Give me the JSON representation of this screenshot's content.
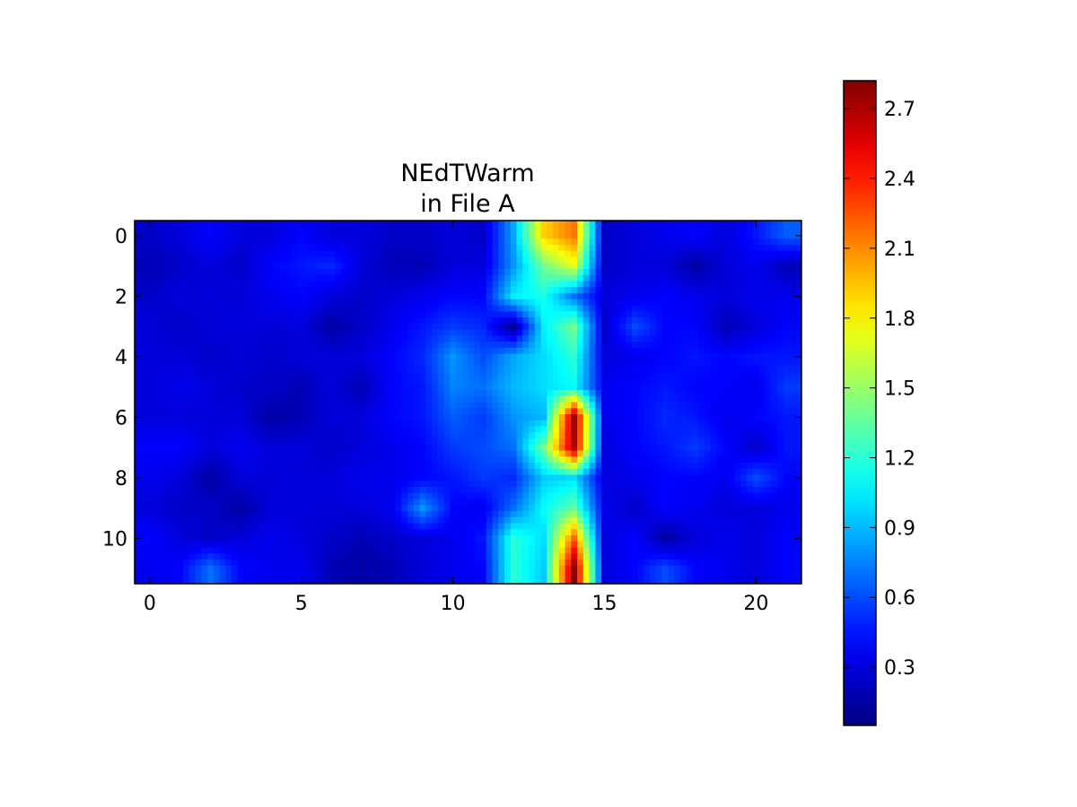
{
  "chart_data": {
    "type": "heatmap",
    "title": [
      "NEdTWarm",
      "in File A"
    ],
    "xlabel": "",
    "ylabel": "",
    "xlim": [
      -0.5,
      21.5
    ],
    "ylim": [
      11.5,
      -0.5
    ],
    "x_ticks": [
      0,
      5,
      10,
      15,
      20
    ],
    "x_tick_labels": [
      "0",
      "5",
      "10",
      "15",
      "20"
    ],
    "y_ticks": [
      0,
      2,
      4,
      6,
      8,
      10
    ],
    "y_tick_labels": [
      "0",
      "2",
      "4",
      "6",
      "8",
      "10"
    ],
    "rows": 12,
    "cols": 22,
    "interpolation": "bilinear",
    "colormap": "jet",
    "colorbar": {
      "vmin": 0.05,
      "vmax": 2.82,
      "ticks": [
        0.3,
        0.6,
        0.9,
        1.2,
        1.5,
        1.8,
        2.1,
        2.4,
        2.7
      ],
      "tick_labels": [
        "0.3",
        "0.6",
        "0.9",
        "1.2",
        "1.5",
        "1.8",
        "2.1",
        "2.4",
        "2.7"
      ],
      "placement": "right"
    },
    "grid": false,
    "values": [
      [
        0.25,
        0.3,
        0.4,
        0.3,
        0.3,
        0.4,
        0.3,
        0.3,
        0.25,
        0.25,
        0.3,
        0.25,
        0.85,
        1.9,
        2.15,
        0.25,
        0.3,
        0.35,
        0.4,
        0.3,
        0.45,
        0.65
      ],
      [
        0.2,
        0.25,
        0.3,
        0.25,
        0.4,
        0.45,
        0.5,
        0.3,
        0.2,
        0.2,
        0.3,
        0.3,
        0.8,
        1.4,
        1.7,
        0.25,
        0.3,
        0.3,
        0.15,
        0.3,
        0.35,
        0.2
      ],
      [
        0.25,
        0.3,
        0.3,
        0.3,
        0.35,
        0.4,
        0.3,
        0.25,
        0.3,
        0.35,
        0.4,
        0.4,
        1.05,
        1.15,
        0.7,
        0.3,
        0.35,
        0.4,
        0.35,
        0.3,
        0.35,
        0.35
      ],
      [
        0.3,
        0.25,
        0.3,
        0.3,
        0.3,
        0.3,
        0.15,
        0.25,
        0.35,
        0.45,
        0.55,
        0.5,
        0.1,
        1.05,
        1.4,
        0.25,
        0.6,
        0.4,
        0.4,
        0.2,
        0.3,
        0.4
      ],
      [
        0.3,
        0.3,
        0.25,
        0.3,
        0.25,
        0.3,
        0.3,
        0.3,
        0.4,
        0.5,
        0.8,
        0.6,
        0.85,
        1.0,
        1.2,
        0.3,
        0.35,
        0.4,
        0.45,
        0.4,
        0.45,
        0.45
      ],
      [
        0.3,
        0.35,
        0.3,
        0.25,
        0.25,
        0.2,
        0.3,
        0.2,
        0.4,
        0.45,
        0.75,
        0.7,
        0.9,
        1.0,
        1.1,
        0.35,
        0.4,
        0.45,
        0.4,
        0.4,
        0.35,
        0.55
      ],
      [
        0.3,
        0.3,
        0.3,
        0.3,
        0.15,
        0.2,
        0.3,
        0.3,
        0.4,
        0.45,
        0.65,
        0.55,
        0.8,
        0.9,
        2.75,
        0.35,
        0.4,
        0.5,
        0.45,
        0.35,
        0.4,
        0.45
      ],
      [
        0.4,
        0.4,
        0.3,
        0.35,
        0.3,
        0.3,
        0.25,
        0.3,
        0.35,
        0.4,
        0.55,
        0.6,
        0.7,
        1.4,
        2.7,
        0.3,
        0.4,
        0.45,
        0.55,
        0.4,
        0.25,
        0.45
      ],
      [
        0.35,
        0.3,
        0.15,
        0.3,
        0.3,
        0.3,
        0.3,
        0.35,
        0.35,
        0.4,
        0.45,
        0.55,
        0.5,
        0.95,
        1.0,
        0.3,
        0.35,
        0.4,
        0.4,
        0.35,
        0.6,
        0.4
      ],
      [
        0.3,
        0.25,
        0.25,
        0.15,
        0.3,
        0.3,
        0.3,
        0.3,
        0.35,
        0.8,
        0.4,
        0.35,
        0.7,
        1.1,
        1.35,
        0.35,
        0.25,
        0.4,
        0.35,
        0.3,
        0.3,
        0.35
      ],
      [
        0.4,
        0.3,
        0.25,
        0.3,
        0.35,
        0.3,
        0.25,
        0.2,
        0.25,
        0.3,
        0.35,
        0.45,
        1.2,
        1.0,
        2.2,
        0.3,
        0.4,
        0.15,
        0.3,
        0.35,
        0.3,
        0.4
      ],
      [
        0.35,
        0.4,
        0.7,
        0.4,
        0.35,
        0.35,
        0.2,
        0.15,
        0.2,
        0.3,
        0.35,
        0.4,
        1.2,
        0.95,
        2.8,
        0.3,
        0.4,
        0.6,
        0.4,
        0.35,
        0.3,
        0.4
      ]
    ]
  }
}
